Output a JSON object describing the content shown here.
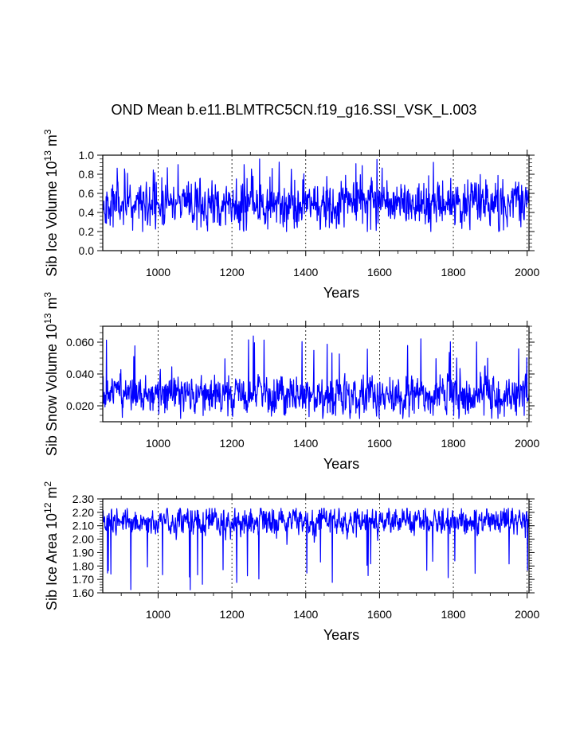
{
  "title": "OND Mean b.e11.BLMTRC5CN.f19_g16.SSI_VSK_L.003",
  "series_color": "#0000ff",
  "chart_data": [
    {
      "type": "line",
      "title": "OND Mean b.e11.BLMTRC5CN.f19_g16.SSI_VSK_L.003",
      "xlabel": "Years",
      "ylabel_parts": [
        "Sib Ice Volume 10",
        "13",
        " m",
        "3"
      ],
      "xlim": [
        850,
        2005
      ],
      "ylim": [
        0.0,
        1.0
      ],
      "xticks": [
        1000,
        1200,
        1400,
        1600,
        1800,
        2000
      ],
      "xtick_labels": [
        "1000",
        "1200",
        "1400",
        "1600",
        "1800",
        "2000"
      ],
      "yticks": [
        0.0,
        0.2,
        0.4,
        0.6,
        0.8,
        1.0
      ],
      "ytick_labels": [
        "0.0",
        "0.2",
        "0.4",
        "0.6",
        "0.8",
        "1.0"
      ],
      "series": [
        {
          "name": "Sib Ice Volume",
          "x_start": 850,
          "x_end": 2005,
          "mean": 0.5,
          "spread": 0.11,
          "min": 0.2,
          "max": 0.96,
          "seed": 11
        }
      ]
    },
    {
      "type": "line",
      "title": "",
      "xlabel": "Years",
      "ylabel_parts": [
        "Sib Snow Volume 10",
        "13",
        " m",
        "3"
      ],
      "xlim": [
        850,
        2005
      ],
      "ylim": [
        0.01,
        0.07
      ],
      "xticks": [
        1000,
        1200,
        1400,
        1600,
        1800,
        2000
      ],
      "xtick_labels": [
        "1000",
        "1200",
        "1400",
        "1600",
        "1800",
        "2000"
      ],
      "yticks": [
        0.02,
        0.04,
        0.06
      ],
      "ytick_labels": [
        "0.020",
        "0.040",
        "0.060"
      ],
      "series": [
        {
          "name": "Sib Snow Volume",
          "x_start": 850,
          "x_end": 2005,
          "mean": 0.027,
          "spread": 0.0055,
          "min": 0.012,
          "max": 0.064,
          "seed": 37
        }
      ]
    },
    {
      "type": "line",
      "title": "",
      "xlabel": "Years",
      "ylabel_parts": [
        "Sib Ice Area 10",
        "12",
        " m",
        "2"
      ],
      "xlim": [
        850,
        2005
      ],
      "ylim": [
        1.6,
        2.3
      ],
      "xticks": [
        1000,
        1200,
        1400,
        1600,
        1800,
        2000
      ],
      "xtick_labels": [
        "1000",
        "1200",
        "1400",
        "1600",
        "1800",
        "2000"
      ],
      "yticks": [
        1.6,
        1.7,
        1.8,
        1.9,
        2.0,
        2.1,
        2.2,
        2.3
      ],
      "ytick_labels": [
        "1.60",
        "1.70",
        "1.80",
        "1.90",
        "2.00",
        "2.10",
        "2.20",
        "2.30"
      ],
      "series": [
        {
          "name": "Sib Ice Area",
          "x_start": 850,
          "x_end": 2005,
          "mean": 2.13,
          "spread": 0.045,
          "min": 1.62,
          "max": 2.23,
          "seed": 73
        }
      ]
    }
  ]
}
